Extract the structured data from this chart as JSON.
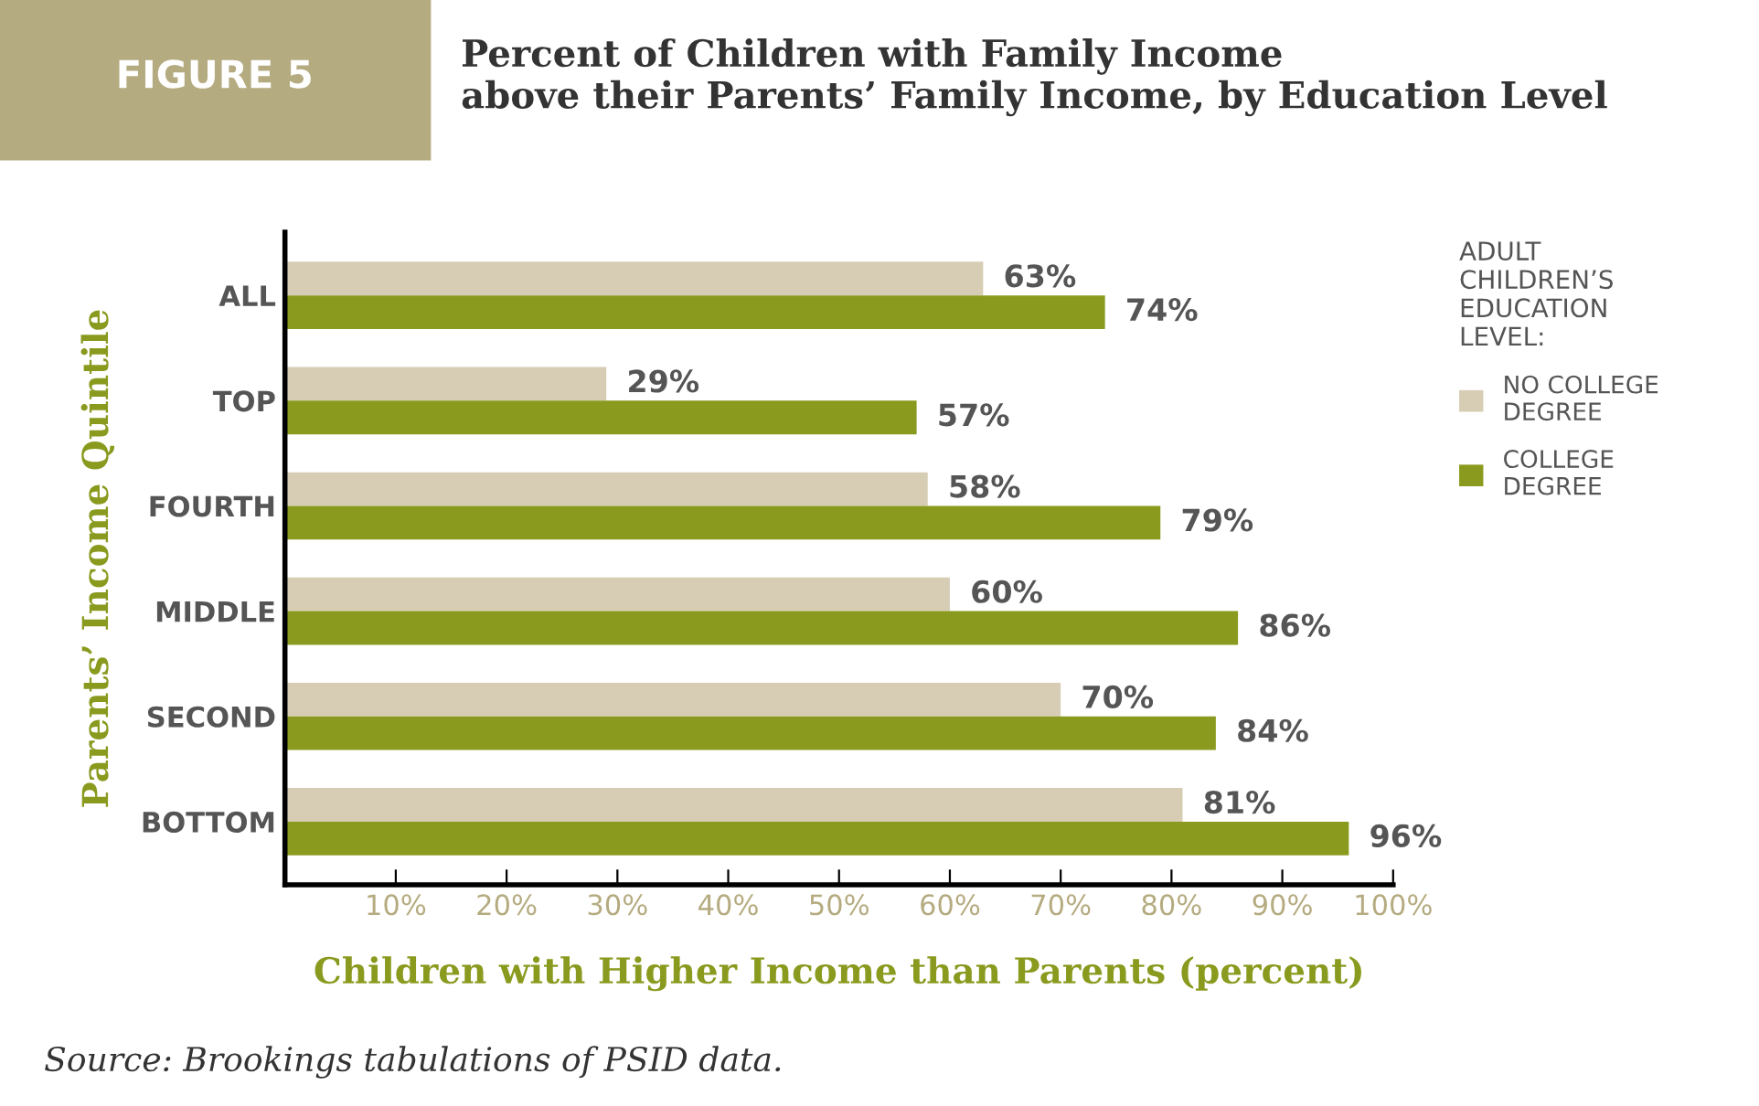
{
  "chart_data": {
    "type": "bar",
    "orientation": "horizontal",
    "title": "Percent of Children with Family Income\nabove their Parents’ Family Income, by Education Level",
    "xlabel": "Children with Higher Income than Parents (percent)",
    "ylabel": "Parents’ Income Quintile",
    "legend_title": "ADULT\nCHILDREN’S\nEDUCATION\nLEVEL:",
    "legend": "right",
    "categories": [
      "ALL",
      "TOP",
      "FOURTH",
      "MIDDLE",
      "SECOND",
      "BOTTOM"
    ],
    "series": [
      {
        "name": "NO COLLEGE\nDEGREE",
        "color": "#d6cdb4",
        "values": [
          63,
          29,
          58,
          60,
          70,
          81
        ],
        "value_labels": [
          "63%",
          "29%",
          "58%",
          "60%",
          "70%",
          "81%"
        ]
      },
      {
        "name": "COLLEGE\nDEGREE",
        "color": "#8a9a1e",
        "values": [
          74,
          57,
          79,
          86,
          84,
          96
        ],
        "value_labels": [
          "74%",
          "57%",
          "79%",
          "86%",
          "84%",
          "96%"
        ]
      }
    ],
    "xlim": [
      0,
      100
    ],
    "xticks": [
      {
        "value": 0,
        "label": null
      },
      {
        "value": 10,
        "label": "10%"
      },
      {
        "value": 20,
        "label": "20%"
      },
      {
        "value": 30,
        "label": "30%"
      },
      {
        "value": 40,
        "label": "40%"
      },
      {
        "value": 50,
        "label": "50%"
      },
      {
        "value": 60,
        "label": "60%"
      },
      {
        "value": 70,
        "label": "70%"
      },
      {
        "value": 80,
        "label": "80%"
      },
      {
        "value": 90,
        "label": "90%"
      },
      {
        "value": 100,
        "label": "100%"
      }
    ],
    "annotations": [
      "FIGURE 5",
      "Source: Brookings tabulations of PSID data."
    ]
  }
}
